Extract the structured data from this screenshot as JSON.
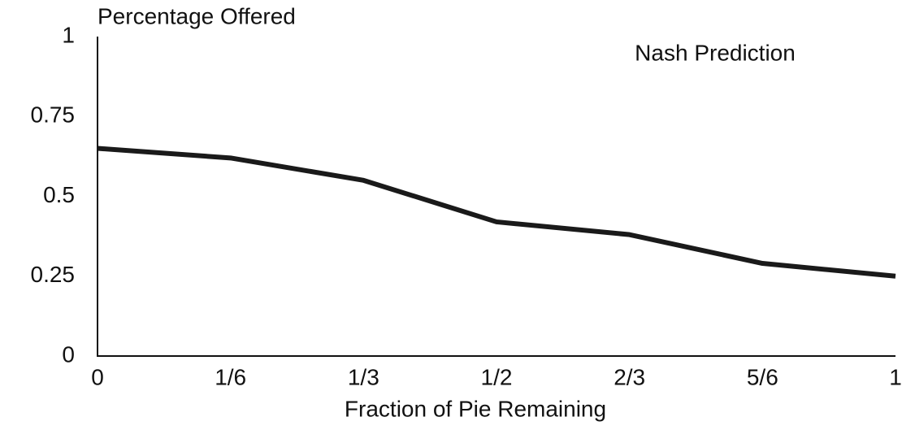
{
  "chart_data": {
    "type": "line",
    "title": "Percentage Offered",
    "x_label": "Fraction of Pie Remaining",
    "categories": [
      "0",
      "1/6",
      "1/3",
      "1/2",
      "2/3",
      "5/6",
      "1"
    ],
    "series": [
      {
        "name": "Nash Prediction",
        "color": "#1a1a1a",
        "values": [
          0.65,
          0.62,
          0.55,
          0.42,
          0.38,
          0.29,
          0.25
        ]
      }
    ],
    "ylim": [
      0,
      1
    ],
    "yticks": [
      0,
      0.25,
      0.5,
      0.75,
      1
    ],
    "grid": false
  }
}
